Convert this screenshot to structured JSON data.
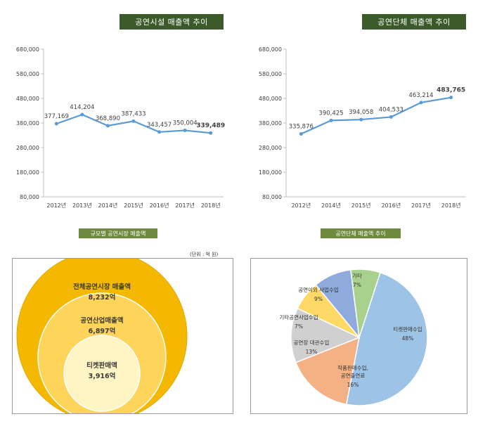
{
  "chart_data": [
    {
      "type": "line",
      "title": "공연시설 매출액 추이",
      "categories": [
        "2012년",
        "2013년",
        "2014년",
        "2015년",
        "2016년",
        "2017년",
        "2018년"
      ],
      "values": [
        377169,
        414204,
        368890,
        387433,
        343457,
        350004,
        339489
      ],
      "labels": [
        "377,169",
        "414,204",
        "368,890",
        "387,433",
        "343,457",
        "350,004",
        "339,489"
      ],
      "ylim": [
        80000,
        680000
      ],
      "yticks": [
        80000,
        180000,
        280000,
        380000,
        480000,
        580000,
        680000
      ],
      "ytick_labels": [
        "80,000",
        "180,000",
        "280,000",
        "380,000",
        "480,000",
        "580,000",
        "680,000"
      ],
      "color": "#5b9bd5",
      "grid": false
    },
    {
      "type": "line",
      "title": "공연단체 매출액 추이",
      "categories": [
        "2012년",
        "2014년",
        "2015년",
        "2016년",
        "2017년",
        "2018년"
      ],
      "values": [
        335876,
        390425,
        394058,
        404533,
        463214,
        483765
      ],
      "labels": [
        "335,876",
        "390,425",
        "394,058",
        "404,533",
        "463,214",
        "483,765"
      ],
      "ylim": [
        80000,
        680000
      ],
      "yticks": [
        80000,
        180000,
        280000,
        380000,
        480000,
        580000,
        680000
      ],
      "ytick_labels": [
        "80,000",
        "180,000",
        "280,000",
        "380,000",
        "480,000",
        "580,000",
        "680,000"
      ],
      "color": "#5b9bd5",
      "grid": false
    },
    {
      "type": "nested-circles",
      "title": "규모별 공연시장 매출액",
      "unit_note": "(단위 : 억 원)",
      "circles": [
        {
          "label": "전체공연시장 매출액",
          "value_label": "8,232억",
          "value": 8232,
          "color": "#f5b800"
        },
        {
          "label": "공연산업매출액",
          "value_label": "6,897억",
          "value": 6897,
          "color": "#ffd45a"
        },
        {
          "label": "티켓판매액",
          "value_label": "3,916억",
          "value": 3916,
          "color": "#fff4c4"
        }
      ]
    },
    {
      "type": "pie",
      "title": "공연단체 매출액 추이",
      "slices": [
        {
          "label": "티켓판매수입",
          "pct_label": "48%",
          "value": 48,
          "color": "#9dc3e6"
        },
        {
          "label": "작품판매수입,\n공연출연료",
          "pct_label": "16%",
          "value": 16,
          "color": "#f4b183"
        },
        {
          "label": "공연장 대관수입",
          "pct_label": "13%",
          "value": 13,
          "color": "#d0d0d0"
        },
        {
          "label": "기타공연사업수입",
          "pct_label": "7%",
          "value": 7,
          "color": "#ffd966"
        },
        {
          "label": "공연이외 사업수입",
          "pct_label": "9%",
          "value": 9,
          "color": "#8faadc"
        },
        {
          "label": "기타",
          "pct_label": "7%",
          "value": 7,
          "color": "#a9d18e"
        }
      ]
    }
  ]
}
